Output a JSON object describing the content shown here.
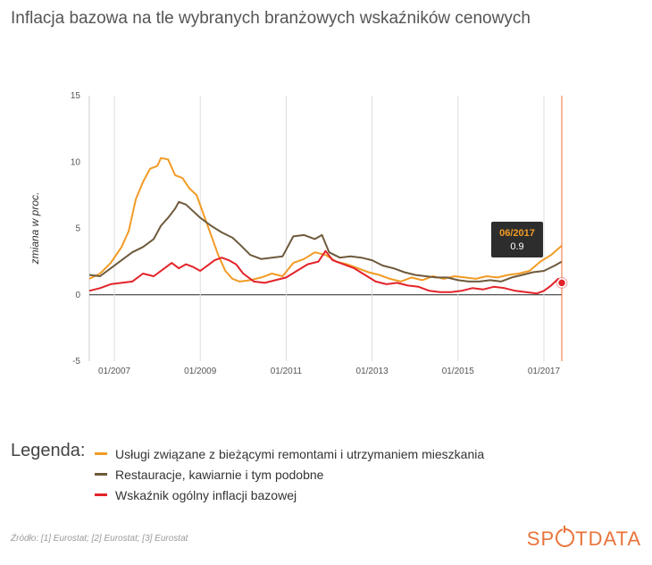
{
  "title": "Inflacja bazowa na tle wybranych branżowych wskaźników cenowych",
  "legend_title": "Legenda:",
  "source": "Źródło: [1] Eurostat; [2] Eurostat; [3] Eurostat",
  "brand": {
    "before": "SP",
    "after": "TDATA",
    "color": "#e8733a"
  },
  "tooltip": {
    "date": "06/2017",
    "value": "0.9",
    "date_color": "#f29b25"
  },
  "chart_data": {
    "type": "line",
    "title": "",
    "xlabel": "",
    "ylabel": "zmiana w proc.",
    "ylim": [
      -5,
      15
    ],
    "yticks": [
      -5,
      0,
      5,
      10,
      15
    ],
    "xlim": [
      "2006-06",
      "2017-06"
    ],
    "xticks": [
      "01/2007",
      "01/2009",
      "01/2011",
      "01/2013",
      "01/2015",
      "01/2017"
    ],
    "grid": "vertical",
    "legend": "bottom",
    "series": [
      {
        "name": "Usługi związane z bieżącymi remontami i utrzymaniem mieszkania",
        "color": "#f29b25",
        "points": [
          [
            "2006-06",
            1.2
          ],
          [
            "2006-09",
            1.6
          ],
          [
            "2006-12",
            2.4
          ],
          [
            "2007-03",
            3.6
          ],
          [
            "2007-05",
            4.8
          ],
          [
            "2007-07",
            7.2
          ],
          [
            "2007-09",
            8.5
          ],
          [
            "2007-11",
            9.5
          ],
          [
            "2008-01",
            9.7
          ],
          [
            "2008-02",
            10.3
          ],
          [
            "2008-04",
            10.2
          ],
          [
            "2008-06",
            9.0
          ],
          [
            "2008-08",
            8.8
          ],
          [
            "2008-10",
            8.0
          ],
          [
            "2008-12",
            7.5
          ],
          [
            "2009-02",
            6.0
          ],
          [
            "2009-04",
            4.5
          ],
          [
            "2009-06",
            3.0
          ],
          [
            "2009-08",
            1.8
          ],
          [
            "2009-10",
            1.2
          ],
          [
            "2009-12",
            1.0
          ],
          [
            "2010-03",
            1.1
          ],
          [
            "2010-06",
            1.3
          ],
          [
            "2010-09",
            1.6
          ],
          [
            "2010-12",
            1.4
          ],
          [
            "2011-03",
            2.4
          ],
          [
            "2011-06",
            2.7
          ],
          [
            "2011-09",
            3.2
          ],
          [
            "2011-12",
            3.0
          ],
          [
            "2012-03",
            2.5
          ],
          [
            "2012-06",
            2.3
          ],
          [
            "2012-09",
            2.0
          ],
          [
            "2012-12",
            1.7
          ],
          [
            "2013-03",
            1.5
          ],
          [
            "2013-06",
            1.2
          ],
          [
            "2013-09",
            1.0
          ],
          [
            "2013-12",
            1.3
          ],
          [
            "2014-03",
            1.1
          ],
          [
            "2014-06",
            1.4
          ],
          [
            "2014-09",
            1.2
          ],
          [
            "2014-12",
            1.4
          ],
          [
            "2015-03",
            1.3
          ],
          [
            "2015-06",
            1.2
          ],
          [
            "2015-09",
            1.4
          ],
          [
            "2015-12",
            1.3
          ],
          [
            "2016-03",
            1.5
          ],
          [
            "2016-06",
            1.6
          ],
          [
            "2016-09",
            1.8
          ],
          [
            "2016-12",
            2.5
          ],
          [
            "2017-03",
            3.0
          ],
          [
            "2017-06",
            3.7
          ]
        ]
      },
      {
        "name": "Restauracje, kawiarnie i tym podobne",
        "color": "#6e5a3c",
        "points": [
          [
            "2006-06",
            1.5
          ],
          [
            "2006-09",
            1.4
          ],
          [
            "2006-12",
            2.0
          ],
          [
            "2007-03",
            2.6
          ],
          [
            "2007-06",
            3.2
          ],
          [
            "2007-09",
            3.6
          ],
          [
            "2007-12",
            4.2
          ],
          [
            "2008-02",
            5.2
          ],
          [
            "2008-04",
            5.8
          ],
          [
            "2008-06",
            6.5
          ],
          [
            "2008-07",
            7.0
          ],
          [
            "2008-09",
            6.8
          ],
          [
            "2008-11",
            6.3
          ],
          [
            "2009-01",
            5.8
          ],
          [
            "2009-04",
            5.2
          ],
          [
            "2009-07",
            4.7
          ],
          [
            "2009-10",
            4.3
          ],
          [
            "2009-12",
            3.8
          ],
          [
            "2010-03",
            3.0
          ],
          [
            "2010-06",
            2.7
          ],
          [
            "2010-09",
            2.8
          ],
          [
            "2010-12",
            2.9
          ],
          [
            "2011-03",
            4.4
          ],
          [
            "2011-06",
            4.5
          ],
          [
            "2011-09",
            4.2
          ],
          [
            "2011-11",
            4.5
          ],
          [
            "2012-01",
            3.2
          ],
          [
            "2012-04",
            2.8
          ],
          [
            "2012-07",
            2.9
          ],
          [
            "2012-10",
            2.8
          ],
          [
            "2013-01",
            2.6
          ],
          [
            "2013-04",
            2.2
          ],
          [
            "2013-07",
            2.0
          ],
          [
            "2013-10",
            1.7
          ],
          [
            "2014-01",
            1.5
          ],
          [
            "2014-04",
            1.4
          ],
          [
            "2014-07",
            1.3
          ],
          [
            "2014-10",
            1.3
          ],
          [
            "2015-01",
            1.1
          ],
          [
            "2015-04",
            1.0
          ],
          [
            "2015-07",
            1.0
          ],
          [
            "2015-10",
            1.1
          ],
          [
            "2016-01",
            1.0
          ],
          [
            "2016-04",
            1.3
          ],
          [
            "2016-07",
            1.5
          ],
          [
            "2016-10",
            1.7
          ],
          [
            "2017-01",
            1.8
          ],
          [
            "2017-04",
            2.2
          ],
          [
            "2017-06",
            2.5
          ]
        ]
      },
      {
        "name": "Wskaźnik ogólny inflacji bazowej",
        "color": "#e3232a",
        "points": [
          [
            "2006-06",
            0.3
          ],
          [
            "2006-09",
            0.5
          ],
          [
            "2006-12",
            0.8
          ],
          [
            "2007-03",
            0.9
          ],
          [
            "2007-06",
            1.0
          ],
          [
            "2007-09",
            1.6
          ],
          [
            "2007-12",
            1.4
          ],
          [
            "2008-03",
            2.0
          ],
          [
            "2008-05",
            2.4
          ],
          [
            "2008-07",
            2.0
          ],
          [
            "2008-09",
            2.3
          ],
          [
            "2008-11",
            2.1
          ],
          [
            "2009-01",
            1.8
          ],
          [
            "2009-03",
            2.2
          ],
          [
            "2009-05",
            2.6
          ],
          [
            "2009-07",
            2.8
          ],
          [
            "2009-09",
            2.6
          ],
          [
            "2009-11",
            2.3
          ],
          [
            "2010-01",
            1.6
          ],
          [
            "2010-04",
            1.0
          ],
          [
            "2010-07",
            0.9
          ],
          [
            "2010-10",
            1.1
          ],
          [
            "2011-01",
            1.3
          ],
          [
            "2011-04",
            1.8
          ],
          [
            "2011-07",
            2.3
          ],
          [
            "2011-10",
            2.5
          ],
          [
            "2011-12",
            3.3
          ],
          [
            "2012-02",
            2.6
          ],
          [
            "2012-05",
            2.3
          ],
          [
            "2012-08",
            2.0
          ],
          [
            "2012-11",
            1.5
          ],
          [
            "2013-02",
            1.0
          ],
          [
            "2013-05",
            0.8
          ],
          [
            "2013-08",
            0.9
          ],
          [
            "2013-11",
            0.7
          ],
          [
            "2014-02",
            0.6
          ],
          [
            "2014-05",
            0.3
          ],
          [
            "2014-08",
            0.2
          ],
          [
            "2014-11",
            0.2
          ],
          [
            "2015-02",
            0.3
          ],
          [
            "2015-05",
            0.5
          ],
          [
            "2015-08",
            0.4
          ],
          [
            "2015-11",
            0.6
          ],
          [
            "2016-02",
            0.5
          ],
          [
            "2016-05",
            0.3
          ],
          [
            "2016-08",
            0.2
          ],
          [
            "2016-11",
            0.1
          ],
          [
            "2017-01",
            0.3
          ],
          [
            "2017-03",
            0.7
          ],
          [
            "2017-05",
            1.2
          ],
          [
            "2017-06",
            0.9
          ]
        ]
      }
    ]
  }
}
